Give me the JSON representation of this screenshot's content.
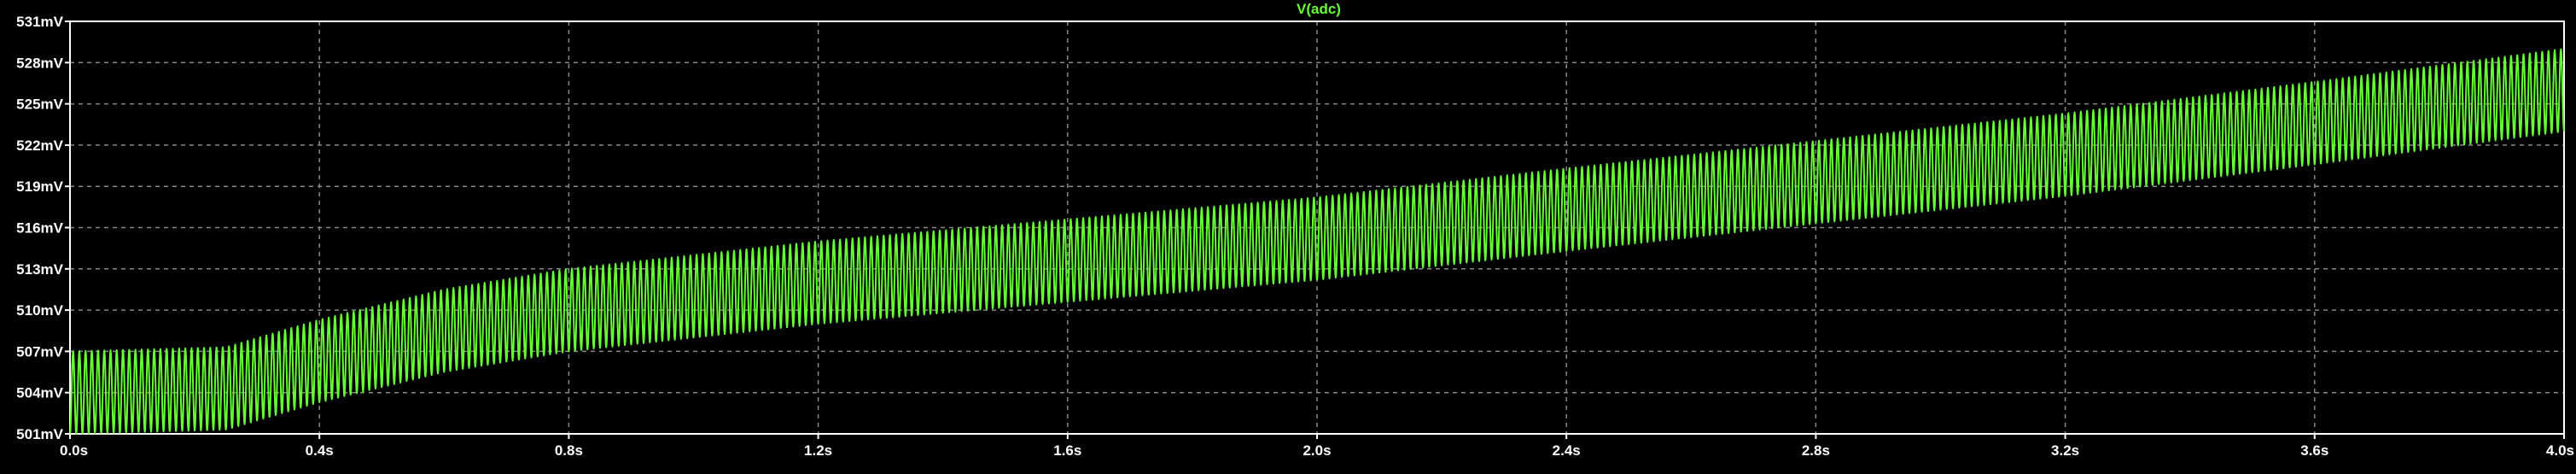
{
  "chart_data": {
    "type": "line",
    "title": "V(adc)",
    "xlabel": "",
    "ylabel": "",
    "x_ticks": [
      "0.0s",
      "0.4s",
      "0.8s",
      "1.2s",
      "1.6s",
      "2.0s",
      "2.4s",
      "2.8s",
      "3.2s",
      "3.6s",
      "4.0s"
    ],
    "y_ticks": [
      "501mV",
      "504mV",
      "507mV",
      "510mV",
      "513mV",
      "516mV",
      "519mV",
      "522mV",
      "525mV",
      "528mV",
      "531mV"
    ],
    "xlim": [
      0,
      4.0
    ],
    "ylim": [
      501,
      531
    ],
    "grid": true,
    "series": [
      {
        "name": "V(adc)",
        "color": "#66ff33",
        "oscillation_frequency_hz": 100,
        "peak_to_peak_mV": 6,
        "envelope_center_mV": [
          [
            0.0,
            504.0
          ],
          [
            0.25,
            504.3
          ],
          [
            0.4,
            506.3
          ],
          [
            0.6,
            508.5
          ],
          [
            0.8,
            510.0
          ],
          [
            1.0,
            511.0
          ],
          [
            1.2,
            512.0
          ],
          [
            1.6,
            513.6
          ],
          [
            2.0,
            515.2
          ],
          [
            2.4,
            517.3
          ],
          [
            2.8,
            519.3
          ],
          [
            3.2,
            521.3
          ],
          [
            3.6,
            523.6
          ],
          [
            4.0,
            526.0
          ]
        ]
      }
    ]
  },
  "colors": {
    "background": "#000000",
    "grid": "#888888",
    "axis_labels": "#ffffff",
    "title": "#66ff33"
  }
}
